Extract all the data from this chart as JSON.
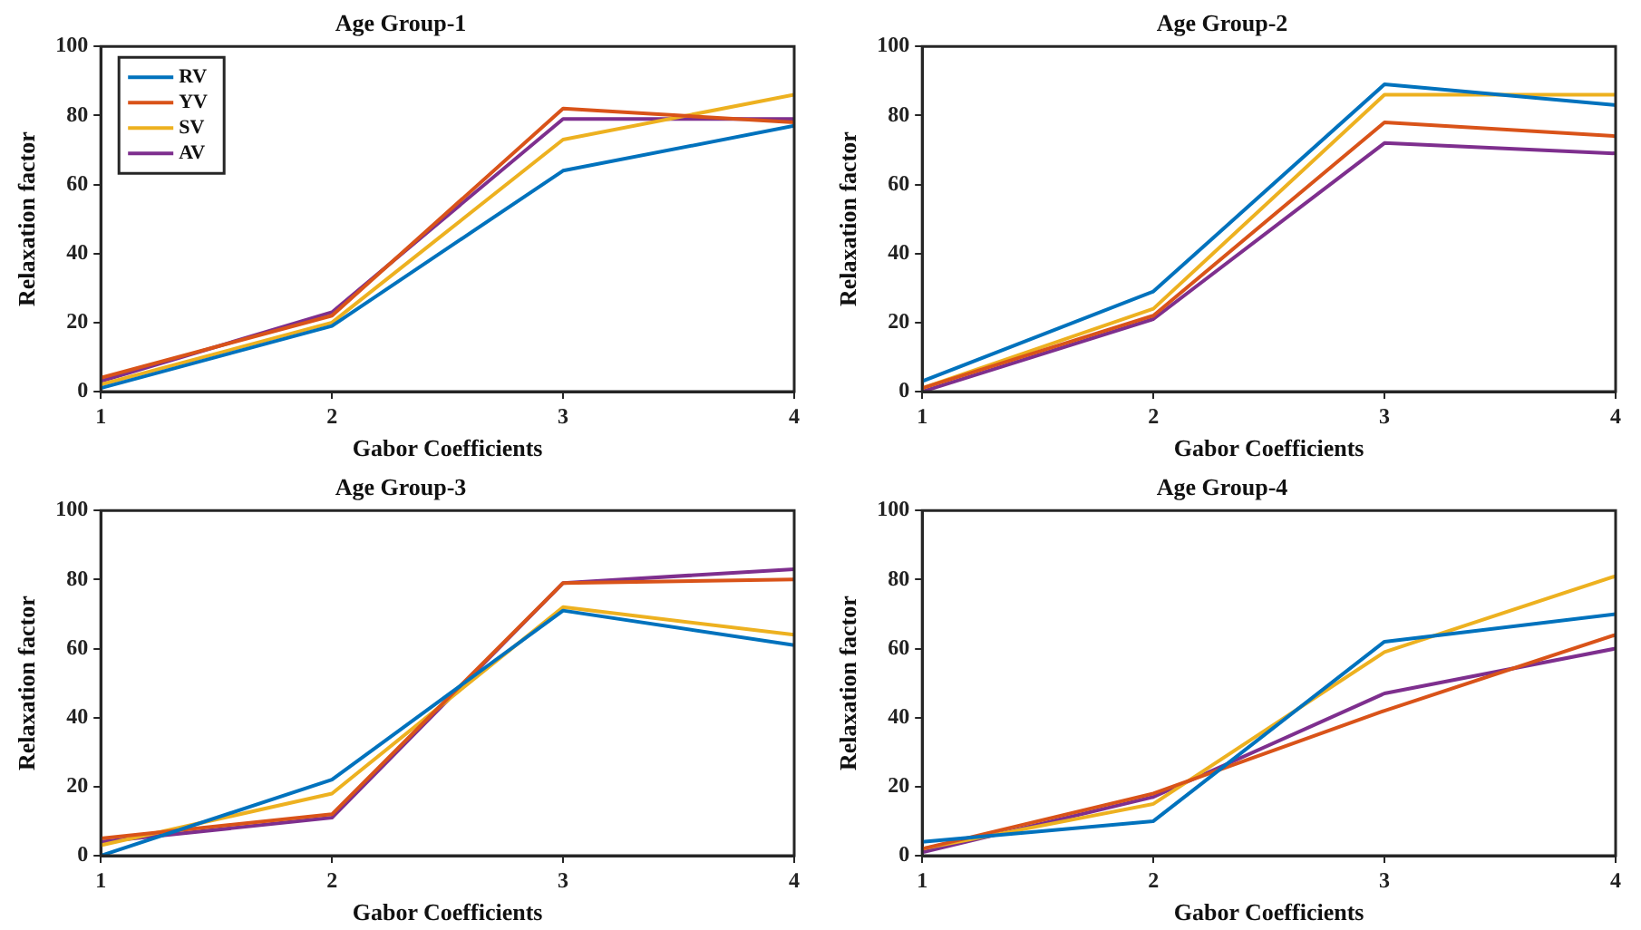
{
  "chart_data": [
    {
      "type": "line",
      "title": "Age Group-1",
      "xlabel": "Gabor Coefficients",
      "ylabel": "Relaxation factor",
      "x": [
        1,
        2,
        3,
        4
      ],
      "xlim": [
        1,
        4
      ],
      "xticks": [
        1,
        2,
        3,
        4
      ],
      "ylim": [
        0,
        100
      ],
      "yticks": [
        0,
        20,
        40,
        60,
        80,
        100
      ],
      "grid": false,
      "legend": "top left",
      "series": [
        {
          "name": "RV",
          "color": "#0072bd",
          "values": [
            1,
            19,
            64,
            77
          ]
        },
        {
          "name": "YV",
          "color": "#d95319",
          "values": [
            4,
            22,
            82,
            78
          ]
        },
        {
          "name": "SV",
          "color": "#edb120",
          "values": [
            2,
            20,
            73,
            86
          ]
        },
        {
          "name": "AV",
          "color": "#7e2f8e",
          "values": [
            3,
            23,
            79,
            79
          ]
        }
      ]
    },
    {
      "type": "line",
      "title": "Age Group-2",
      "xlabel": "Gabor Coefficients",
      "ylabel": "Relaxation factor",
      "x": [
        1,
        2,
        3,
        4
      ],
      "xlim": [
        1,
        4
      ],
      "xticks": [
        1,
        2,
        3,
        4
      ],
      "ylim": [
        0,
        100
      ],
      "yticks": [
        0,
        20,
        40,
        60,
        80,
        100
      ],
      "grid": false,
      "series": [
        {
          "color": "#0072bd",
          "values": [
            3,
            29,
            89,
            83
          ]
        },
        {
          "color": "#d95319",
          "values": [
            1,
            22,
            78,
            74
          ]
        },
        {
          "color": "#edb120",
          "values": [
            1,
            24,
            86,
            86
          ]
        },
        {
          "color": "#7e2f8e",
          "values": [
            0,
            21,
            72,
            69
          ]
        }
      ]
    },
    {
      "type": "line",
      "title": "Age Group-3",
      "xlabel": "Gabor Coefficients",
      "ylabel": "Relaxation factor",
      "x": [
        1,
        2,
        3,
        4
      ],
      "xlim": [
        1,
        4
      ],
      "xticks": [
        1,
        2,
        3,
        4
      ],
      "ylim": [
        0,
        100
      ],
      "yticks": [
        0,
        20,
        40,
        60,
        80,
        100
      ],
      "grid": false,
      "series": [
        {
          "color": "#0072bd",
          "values": [
            0,
            22,
            71,
            61
          ]
        },
        {
          "color": "#d95319",
          "values": [
            5,
            12,
            79,
            80
          ]
        },
        {
          "color": "#edb120",
          "values": [
            3,
            18,
            72,
            64
          ]
        },
        {
          "color": "#7e2f8e",
          "values": [
            4,
            11,
            79,
            83
          ]
        }
      ]
    },
    {
      "type": "line",
      "title": "Age Group-4",
      "xlabel": "Gabor Coefficients",
      "ylabel": "Relaxation factor",
      "x": [
        1,
        2,
        3,
        4
      ],
      "xlim": [
        1,
        4
      ],
      "xticks": [
        1,
        2,
        3,
        4
      ],
      "ylim": [
        0,
        100
      ],
      "yticks": [
        0,
        20,
        40,
        60,
        80,
        100
      ],
      "grid": false,
      "series": [
        {
          "color": "#0072bd",
          "values": [
            4,
            10,
            62,
            70
          ]
        },
        {
          "color": "#d95319",
          "values": [
            2,
            18,
            42,
            64
          ]
        },
        {
          "color": "#edb120",
          "values": [
            2,
            15,
            59,
            81
          ]
        },
        {
          "color": "#7e2f8e",
          "values": [
            1,
            17,
            47,
            60
          ]
        }
      ]
    }
  ]
}
